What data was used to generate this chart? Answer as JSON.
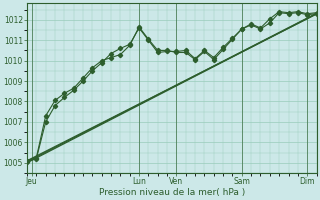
{
  "background_color": "#cce8e8",
  "grid_color": "#99ccbb",
  "line_color": "#2d5e2d",
  "title": "Pression niveau de la mer( hPa )",
  "ylim": [
    1004.5,
    1012.8
  ],
  "yticks": [
    1005,
    1006,
    1007,
    1008,
    1009,
    1010,
    1011,
    1012
  ],
  "xlim": [
    0,
    31
  ],
  "xtick_positions": [
    0.5,
    12,
    16,
    23,
    30
  ],
  "xtick_labels": [
    "Jeu",
    "Lun",
    "Ven",
    "Sam",
    "Dim"
  ],
  "vlines": [
    0.5,
    12,
    16,
    23,
    30
  ],
  "line1_x": [
    0,
    1,
    2,
    3,
    4,
    5,
    6,
    7,
    8,
    9,
    10,
    11,
    12,
    13,
    14,
    15,
    16,
    17,
    18,
    19,
    20,
    21,
    22,
    23,
    24,
    25,
    26,
    27,
    28,
    29,
    30,
    31
  ],
  "line1_y": [
    1005.05,
    1005.2,
    1007.0,
    1007.8,
    1008.2,
    1008.55,
    1009.0,
    1009.5,
    1009.9,
    1010.35,
    1010.6,
    1010.8,
    1011.6,
    1011.0,
    1010.4,
    1010.45,
    1010.45,
    1010.5,
    1010.1,
    1010.5,
    1010.15,
    1010.65,
    1011.1,
    1011.55,
    1011.8,
    1011.6,
    1012.05,
    1012.4,
    1012.35,
    1012.4,
    1012.3,
    1012.35
  ],
  "line2_x": [
    0,
    1,
    2,
    3,
    4,
    5,
    6,
    7,
    8,
    9,
    10,
    11,
    12,
    13,
    14,
    15,
    16,
    17,
    18,
    19,
    20,
    21,
    22,
    23,
    24,
    25,
    26,
    27,
    28,
    29,
    30,
    31
  ],
  "line2_y": [
    1005.1,
    1005.25,
    1007.3,
    1008.05,
    1008.4,
    1008.65,
    1009.15,
    1009.65,
    1010.0,
    1010.15,
    1010.3,
    1010.75,
    1011.65,
    1011.05,
    1010.5,
    1010.5,
    1010.4,
    1010.4,
    1010.05,
    1010.45,
    1010.05,
    1010.55,
    1011.05,
    1011.55,
    1011.75,
    1011.55,
    1011.85,
    1012.35,
    1012.3,
    1012.35,
    1012.25,
    1012.3
  ],
  "trend1_x": [
    0,
    31
  ],
  "trend1_y": [
    1005.0,
    1012.3
  ],
  "trend2_x": [
    0,
    31
  ],
  "trend2_y": [
    1005.05,
    1012.32
  ],
  "trend3_x": [
    0,
    31
  ],
  "trend3_y": [
    1005.1,
    1012.28
  ]
}
